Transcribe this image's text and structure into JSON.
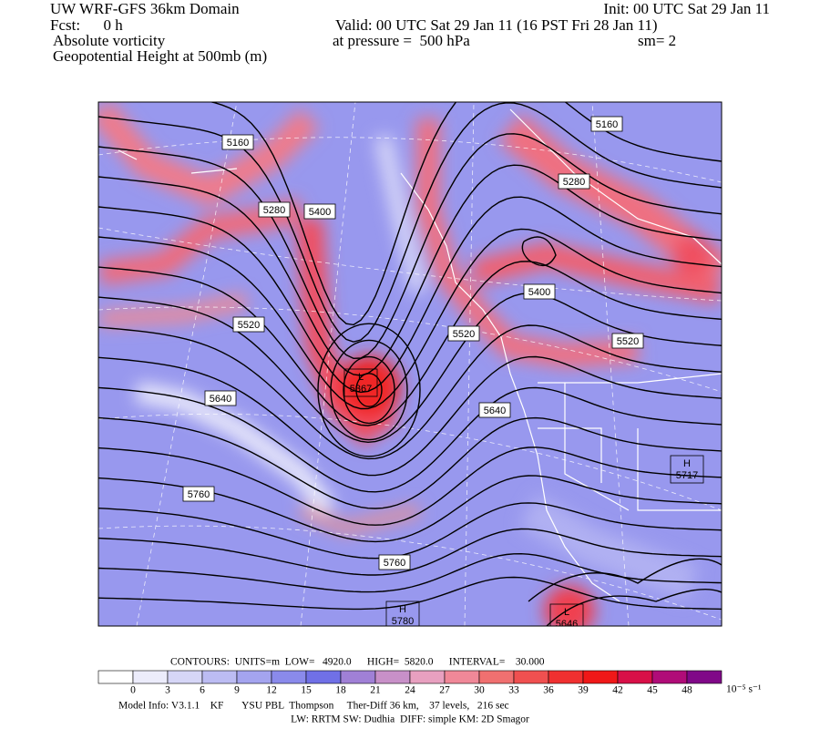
{
  "header": {
    "model": "UW WRF-GFS 36km Domain",
    "init": "Init: 00 UTC Sat 29 Jan 11",
    "fcst": "Fcst:      0 h",
    "valid": "Valid: 00 UTC Sat 29 Jan 11 (16 PST Fri 28 Jan 11)",
    "field": "Absolute vorticity",
    "pressure": "at pressure =  500 hPa",
    "smoothing": "sm= 2",
    "contour_field": "Geopotential Height at 500mb (m)"
  },
  "map": {
    "contour_labels": [
      "5160",
      "5160",
      "5280",
      "5400",
      "5280",
      "5400",
      "5520",
      "5520",
      "5520",
      "5640",
      "5640",
      "5760",
      "5760"
    ],
    "centers": [
      {
        "letter": "L",
        "value": "5367"
      },
      {
        "letter": "H",
        "value": "5717"
      },
      {
        "letter": "H",
        "value": "5780"
      },
      {
        "letter": "L",
        "value": "5646"
      }
    ]
  },
  "contour_info": "CONTOURS:  UNITS=m  LOW=   4920.0      HIGH=  5820.0      INTERVAL=    30.000",
  "colorbar": {
    "ticks": [
      "0",
      "3",
      "6",
      "9",
      "12",
      "15",
      "18",
      "21",
      "24",
      "27",
      "30",
      "33",
      "36",
      "39",
      "42",
      "45",
      "48"
    ],
    "unit": "10⁻⁵ s⁻¹"
  },
  "footer": {
    "model_info": "Model Info: V3.1.1    KF       YSU PBL  Thompson     Ther-Diff 36 km,    37 levels,   216 sec",
    "physics": "LW: RRTM SW: Dudhia  DIFF: simple KM: 2D Smagor"
  }
}
